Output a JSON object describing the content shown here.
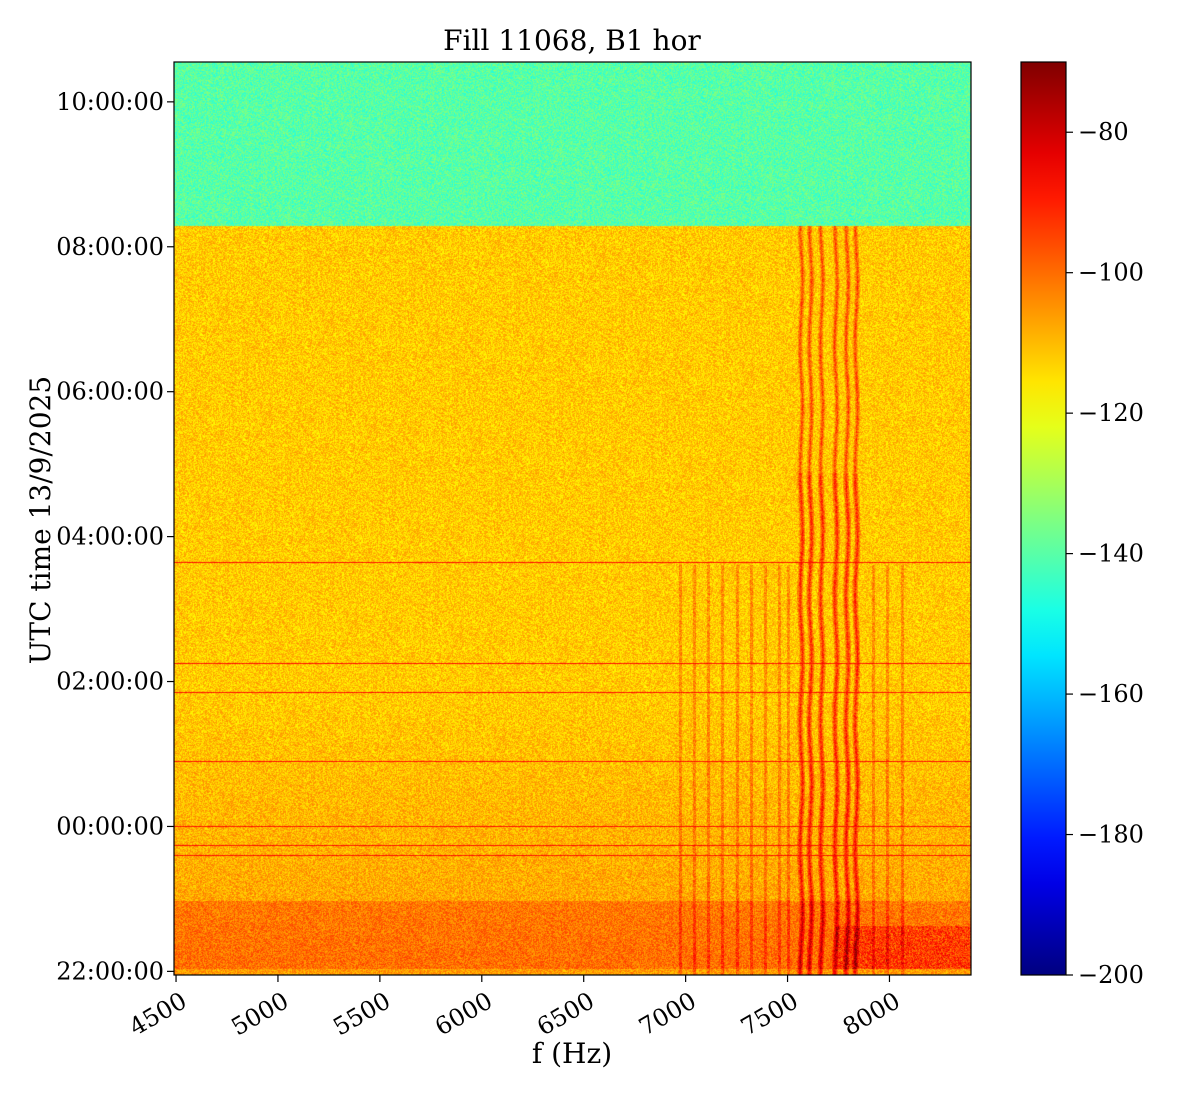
{
  "chart_data": {
    "type": "heatmap",
    "title": "Fill 11068, B1 hor",
    "xlabel": "f (Hz)",
    "ylabel": "UTC time 13/9/2025",
    "xlim": [
      4490,
      8400
    ],
    "x_ticks": [
      4500,
      5000,
      5500,
      6000,
      6500,
      7000,
      7500,
      8000
    ],
    "x_tick_labels": [
      "4500",
      "5000",
      "5500",
      "6000",
      "6500",
      "7000",
      "7500",
      "8000"
    ],
    "y_axis_time_span_hours": [
      -2.05,
      10.55
    ],
    "y_ticks_hours": [
      22,
      24,
      26,
      28,
      30,
      32,
      34
    ],
    "y_tick_labels": [
      "22:00:00",
      "00:00:00",
      "02:00:00",
      "04:00:00",
      "06:00:00",
      "08:00:00",
      "10:00:00"
    ],
    "colorbar": {
      "colormap": "jet",
      "vmin": -200,
      "vmax": -70,
      "ticks": [
        -80,
        -100,
        -120,
        -140,
        -160,
        -180,
        -200
      ],
      "tick_labels": [
        "−80",
        "−100",
        "−120",
        "−140",
        "−160",
        "−180",
        "−200"
      ]
    },
    "regions": [
      {
        "time_range_hours": [
          32.3,
          34.55
        ],
        "freq_range_hz": [
          4490,
          8400
        ],
        "level_db": -140
      },
      {
        "time_range_hours": [
          20.0,
          32.3
        ],
        "freq_range_hz": [
          4490,
          8400
        ],
        "level_db": -112
      }
    ],
    "horizontal_lines_hours": [
      27.65,
      26.25,
      25.85,
      24.9,
      24.0,
      23.75,
      23.6
    ],
    "strong_lines_hz": [
      7565,
      7610,
      7665,
      7735,
      7790,
      7835
    ],
    "weak_lines_hz": [
      6970,
      7040,
      7110,
      7180,
      7250,
      7320,
      7390,
      7460,
      7500,
      7920,
      7990,
      8060
    ],
    "low_band_level_db": -95
  }
}
